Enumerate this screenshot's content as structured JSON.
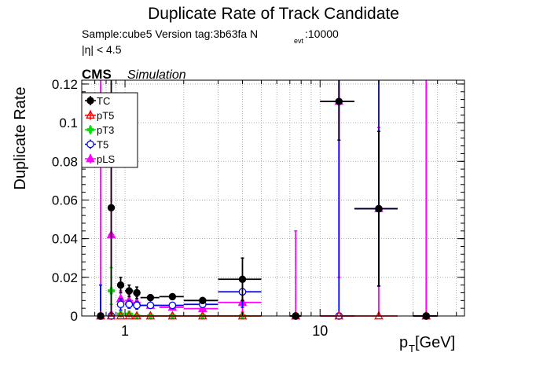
{
  "header": {
    "title": "Duplicate Rate of Track Candidate",
    "sample_info": "Sample:cube5   Version tag:3b63fa  N",
    "nevt_sub": "evt",
    "nevt_value": ":10000",
    "eta_cut": "|η| < 4.5",
    "cms": "CMS",
    "simulation": "Simulation"
  },
  "chart_data": {
    "type": "scatter",
    "title": "Duplicate Rate of Track Candidate",
    "xlabel_main": "p",
    "xlabel_sub": "T",
    "xlabel_unit": " [GeV]",
    "ylabel": "Duplicate Rate",
    "x_scale": "log",
    "xlim": [
      0.6,
      55
    ],
    "ylim": [
      0,
      0.122
    ],
    "grid": true,
    "legend_position": "top-left",
    "x_tick_labels": [
      {
        "value": 1,
        "label": "1"
      },
      {
        "value": 10,
        "label": "10"
      }
    ],
    "y_tick_labels": [
      {
        "value": 0,
        "label": "0"
      },
      {
        "value": 0.02,
        "label": "0.02"
      },
      {
        "value": 0.04,
        "label": "0.04"
      },
      {
        "value": 0.06,
        "label": "0.06"
      },
      {
        "value": 0.08,
        "label": "0.08"
      },
      {
        "value": 0.1,
        "label": "0.1"
      },
      {
        "value": 0.12,
        "label": "0.12"
      }
    ],
    "series": [
      {
        "name": "TC",
        "color": "#000000",
        "marker": "filled-circle",
        "points": [
          {
            "x": 0.75,
            "xlo": 0.72,
            "xhi": 0.78,
            "y": 0,
            "elo": 0,
            "ehi": 0
          },
          {
            "x": 0.85,
            "xlo": 0.82,
            "xhi": 0.88,
            "y": 0.056,
            "elo": 0.056,
            "ehi": 0.07
          },
          {
            "x": 0.95,
            "xlo": 0.92,
            "xhi": 0.98,
            "y": 0.016,
            "elo": 0.004,
            "ehi": 0.004
          },
          {
            "x": 1.05,
            "xlo": 1.0,
            "xhi": 1.1,
            "y": 0.013,
            "elo": 0.003,
            "ehi": 0.003
          },
          {
            "x": 1.15,
            "xlo": 1.1,
            "xhi": 1.2,
            "y": 0.012,
            "elo": 0.003,
            "ehi": 0.003
          },
          {
            "x": 1.35,
            "xlo": 1.2,
            "xhi": 1.5,
            "y": 0.0095,
            "elo": 0.0015,
            "ehi": 0.0015
          },
          {
            "x": 1.75,
            "xlo": 1.5,
            "xhi": 2.0,
            "y": 0.01,
            "elo": 0.0013,
            "ehi": 0.0013
          },
          {
            "x": 2.5,
            "xlo": 2.0,
            "xhi": 3.0,
            "y": 0.008,
            "elo": 0.0015,
            "ehi": 0.0015
          },
          {
            "x": 4.0,
            "xlo": 3.0,
            "xhi": 5.0,
            "y": 0.019,
            "elo": 0.011,
            "ehi": 0.011
          },
          {
            "x": 7.5,
            "xlo": 7.0,
            "xhi": 8.0,
            "y": 0,
            "elo": 0,
            "ehi": 0
          },
          {
            "x": 12.5,
            "xlo": 10.0,
            "xhi": 15.0,
            "y": 0.111,
            "elo": 0.02,
            "ehi": 0.02
          },
          {
            "x": 20,
            "xlo": 15.0,
            "xhi": 25.0,
            "y": 0.0555,
            "elo": 0.04,
            "ehi": 0.04
          },
          {
            "x": 35,
            "xlo": 30.0,
            "xhi": 40.0,
            "y": 0,
            "elo": 0,
            "ehi": 0
          }
        ]
      },
      {
        "name": "pT5",
        "color": "#ff0000",
        "marker": "open-triangle",
        "points": [
          {
            "x": 0.75,
            "xlo": 0.72,
            "xhi": 0.78,
            "y": 0,
            "elo": 0,
            "ehi": 0
          },
          {
            "x": 0.85,
            "xlo": 0.82,
            "xhi": 0.88,
            "y": 0,
            "elo": 0,
            "ehi": 0
          },
          {
            "x": 0.95,
            "xlo": 0.92,
            "xhi": 0.98,
            "y": 0,
            "elo": 0,
            "ehi": 0
          },
          {
            "x": 1.05,
            "xlo": 1.0,
            "xhi": 1.1,
            "y": 0,
            "elo": 0,
            "ehi": 0
          },
          {
            "x": 1.15,
            "xlo": 1.1,
            "xhi": 1.2,
            "y": 0,
            "elo": 0,
            "ehi": 0
          },
          {
            "x": 1.35,
            "xlo": 1.2,
            "xhi": 1.5,
            "y": 0,
            "elo": 0,
            "ehi": 0
          },
          {
            "x": 1.75,
            "xlo": 1.5,
            "xhi": 2.0,
            "y": 0,
            "elo": 0,
            "ehi": 0
          },
          {
            "x": 2.5,
            "xlo": 2.0,
            "xhi": 3.0,
            "y": 0,
            "elo": 0,
            "ehi": 0
          },
          {
            "x": 4.0,
            "xlo": 3.0,
            "xhi": 5.0,
            "y": 0,
            "elo": 0,
            "ehi": 0
          },
          {
            "x": 7.5,
            "xlo": 7.0,
            "xhi": 8.0,
            "y": 0,
            "elo": 0,
            "ehi": 0
          },
          {
            "x": 12.5,
            "xlo": 10.0,
            "xhi": 15.0,
            "y": 0,
            "elo": 0,
            "ehi": 0
          },
          {
            "x": 20,
            "xlo": 15.0,
            "xhi": 25.0,
            "y": 0,
            "elo": 0,
            "ehi": 0
          },
          {
            "x": 35,
            "xlo": 30.0,
            "xhi": 40.0,
            "y": 0,
            "elo": 0,
            "ehi": 0
          }
        ]
      },
      {
        "name": "pT3",
        "color": "#00e000",
        "marker": "filled-cross",
        "points": [
          {
            "x": 0.75,
            "xlo": 0.72,
            "xhi": 0.78,
            "y": 0,
            "elo": 0,
            "ehi": 0
          },
          {
            "x": 0.85,
            "xlo": 0.82,
            "xhi": 0.88,
            "y": 0.013,
            "elo": 0.007,
            "ehi": 0.012
          },
          {
            "x": 0.95,
            "xlo": 0.92,
            "xhi": 0.98,
            "y": 0.001,
            "elo": 0.001,
            "ehi": 0.001
          },
          {
            "x": 1.05,
            "xlo": 1.0,
            "xhi": 1.1,
            "y": 0.001,
            "elo": 0.001,
            "ehi": 0.001
          },
          {
            "x": 1.15,
            "xlo": 1.1,
            "xhi": 1.2,
            "y": 0,
            "elo": 0,
            "ehi": 0
          },
          {
            "x": 1.35,
            "xlo": 1.2,
            "xhi": 1.5,
            "y": 0,
            "elo": 0,
            "ehi": 0
          },
          {
            "x": 1.75,
            "xlo": 1.5,
            "xhi": 2.0,
            "y": 0,
            "elo": 0,
            "ehi": 0
          },
          {
            "x": 2.5,
            "xlo": 2.0,
            "xhi": 3.0,
            "y": 0,
            "elo": 0,
            "ehi": 0
          },
          {
            "x": 4.0,
            "xlo": 3.0,
            "xhi": 5.0,
            "y": 0,
            "elo": 0,
            "ehi": 0
          }
        ]
      },
      {
        "name": "T5",
        "color": "#0000ff",
        "marker": "open-circle",
        "points": [
          {
            "x": 0.75,
            "xlo": 0.72,
            "xhi": 0.78,
            "y": 0,
            "elo": 0,
            "ehi": 0.016
          },
          {
            "x": 0.85,
            "xlo": 0.82,
            "xhi": 0.88,
            "y": 0,
            "elo": 0,
            "ehi": 0
          },
          {
            "x": 0.95,
            "xlo": 0.92,
            "xhi": 0.98,
            "y": 0.006,
            "elo": 0.003,
            "ehi": 0.003
          },
          {
            "x": 1.05,
            "xlo": 1.0,
            "xhi": 1.1,
            "y": 0.006,
            "elo": 0.002,
            "ehi": 0.002
          },
          {
            "x": 1.15,
            "xlo": 1.1,
            "xhi": 1.2,
            "y": 0.0055,
            "elo": 0.002,
            "ehi": 0.002
          },
          {
            "x": 1.35,
            "xlo": 1.2,
            "xhi": 1.5,
            "y": 0.0055,
            "elo": 0.0015,
            "ehi": 0.0015
          },
          {
            "x": 1.75,
            "xlo": 1.5,
            "xhi": 2.0,
            "y": 0.0055,
            "elo": 0.0012,
            "ehi": 0.0012
          },
          {
            "x": 2.5,
            "xlo": 2.0,
            "xhi": 3.0,
            "y": 0.006,
            "elo": 0.0015,
            "ehi": 0.0015
          },
          {
            "x": 4.0,
            "xlo": 3.0,
            "xhi": 5.0,
            "y": 0.0125,
            "elo": 0.008,
            "ehi": 0.008
          },
          {
            "x": 7.5,
            "xlo": 7.0,
            "xhi": 8.0,
            "y": 0,
            "elo": 0,
            "ehi": 0
          },
          {
            "x": 12.5,
            "xlo": 10.0,
            "xhi": 15.0,
            "y": 0,
            "elo": 0,
            "ehi": 0.122
          },
          {
            "x": 20,
            "xlo": 15.0,
            "xhi": 25.0,
            "y": 0.0555,
            "elo": 0.04,
            "ehi": 0.07
          },
          {
            "x": 35,
            "xlo": 30.0,
            "xhi": 40.0,
            "y": 0,
            "elo": 0,
            "ehi": 0
          }
        ]
      },
      {
        "name": "pLS",
        "color": "#ff00ff",
        "marker": "filled-triangle",
        "points": [
          {
            "x": 0.75,
            "xlo": 0.72,
            "xhi": 0.78,
            "y": 0,
            "elo": 0,
            "ehi": 0.122
          },
          {
            "x": 0.85,
            "xlo": 0.82,
            "xhi": 0.88,
            "y": 0.042,
            "elo": 0.04,
            "ehi": 0.05
          },
          {
            "x": 0.95,
            "xlo": 0.92,
            "xhi": 0.98,
            "y": 0.009,
            "elo": 0.004,
            "ehi": 0.004
          },
          {
            "x": 1.05,
            "xlo": 1.0,
            "xhi": 1.1,
            "y": 0.008,
            "elo": 0.003,
            "ehi": 0.003
          },
          {
            "x": 1.15,
            "xlo": 1.1,
            "xhi": 1.2,
            "y": 0.007,
            "elo": 0.003,
            "ehi": 0.003
          },
          {
            "x": 1.35,
            "xlo": 1.2,
            "xhi": 1.5,
            "y": 0.0055,
            "elo": 0.0015,
            "ehi": 0.0015
          },
          {
            "x": 1.75,
            "xlo": 1.5,
            "xhi": 2.0,
            "y": 0.0045,
            "elo": 0.0012,
            "ehi": 0.0012
          },
          {
            "x": 2.5,
            "xlo": 2.0,
            "xhi": 3.0,
            "y": 0.0038,
            "elo": 0.0012,
            "ehi": 0.0012
          },
          {
            "x": 4.0,
            "xlo": 3.0,
            "xhi": 5.0,
            "y": 0.007,
            "elo": 0.005,
            "ehi": 0.005
          },
          {
            "x": 7.5,
            "xlo": 7.0,
            "xhi": 8.0,
            "y": 0,
            "elo": 0,
            "ehi": 0.044
          },
          {
            "x": 12.5,
            "xlo": 10.0,
            "xhi": 15.0,
            "y": 0.111,
            "elo": 0.091,
            "ehi": 0.011
          },
          {
            "x": 20,
            "xlo": 15.0,
            "xhi": 25.0,
            "y": 0.0555,
            "elo": 0.0555,
            "ehi": 0.042
          },
          {
            "x": 35,
            "xlo": 30.0,
            "xhi": 40.0,
            "y": 0,
            "elo": 0,
            "ehi": 0.122
          }
        ]
      }
    ]
  }
}
